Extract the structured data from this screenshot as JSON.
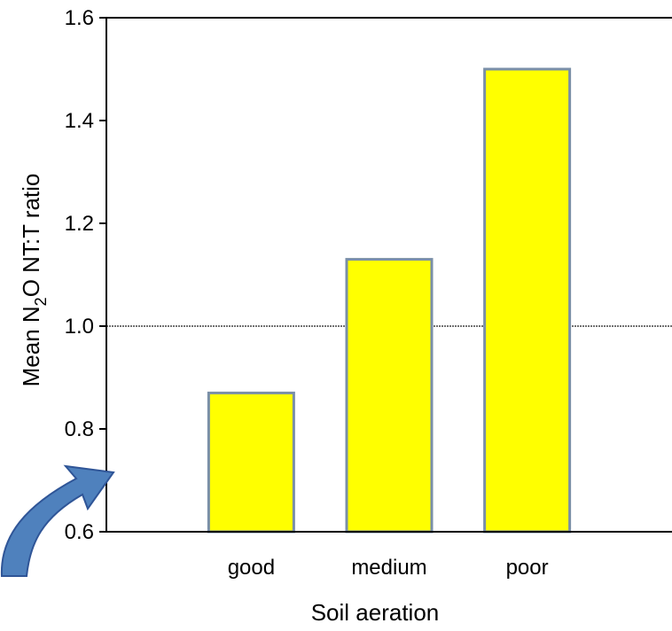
{
  "chart_data": {
    "type": "bar",
    "categories": [
      "good",
      "medium",
      "poor"
    ],
    "values": [
      0.87,
      1.13,
      1.5
    ],
    "xlabel": "Soil aeration",
    "ylabel": {
      "prefix": "Mean N",
      "subscript": "2",
      "suffix": "O NT:T ratio"
    },
    "ylim": [
      0.6,
      1.6
    ],
    "yticks": [
      "0.6",
      "0.8",
      "1.0",
      "1.2",
      "1.4",
      "1.6"
    ],
    "reference_line": 1.0,
    "grid": false,
    "legend": "none",
    "colors": {
      "bar_fill": "#ffff00",
      "bar_edge": "#7a8fa8",
      "reference_line": "#444444",
      "arrow": "#4f81bd",
      "arrow_edge": "#2f5597"
    }
  }
}
